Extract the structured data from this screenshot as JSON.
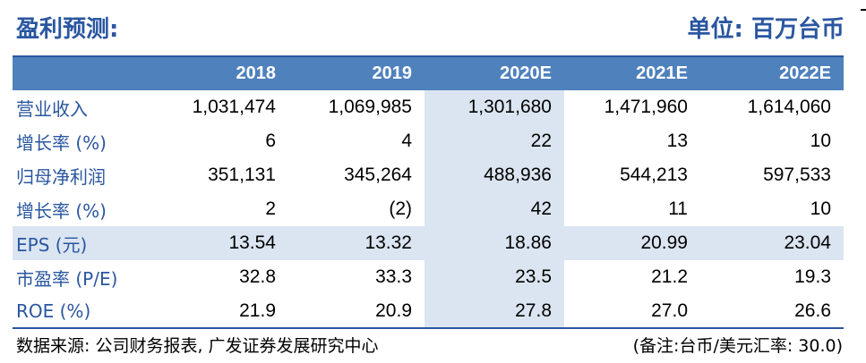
{
  "header": {
    "title": "盈利预测:",
    "unit": "单位: 百万台币"
  },
  "table": {
    "columns": [
      "",
      "2018",
      "2019",
      "2020E",
      "2021E",
      "2022E"
    ],
    "rows": [
      {
        "label": "营业收入",
        "values": [
          "1,031,474",
          "1,069,985",
          "1,301,680",
          "1,471,960",
          "1,614,060"
        ]
      },
      {
        "label": "增长率 (%)",
        "values": [
          "6",
          "4",
          "22",
          "13",
          "10"
        ]
      },
      {
        "label": "归母净利润",
        "values": [
          "351,131",
          "345,264",
          "488,936",
          "544,213",
          "597,533"
        ]
      },
      {
        "label": "增长率 (%)",
        "values": [
          "2",
          "(2)",
          "42",
          "11",
          "10"
        ]
      },
      {
        "label": "EPS (元)",
        "values": [
          "13.54",
          "13.32",
          "18.86",
          "20.99",
          "23.04"
        ]
      },
      {
        "label": "市盈率 (P/E)",
        "values": [
          "32.8",
          "33.3",
          "23.5",
          "21.2",
          "19.3"
        ]
      },
      {
        "label": "ROE (%)",
        "values": [
          "21.9",
          "20.9",
          "27.8",
          "27.0",
          "26.6"
        ]
      }
    ]
  },
  "footer": {
    "source": "数据来源: 公司财务报表, 广发证券发展研究中心",
    "note": "(备注:台币/美元汇率: 30.0)"
  },
  "colors": {
    "accent": "#2a56a0",
    "header_bg": "#4f81bd",
    "highlight_bg": "#dbe5f1"
  }
}
